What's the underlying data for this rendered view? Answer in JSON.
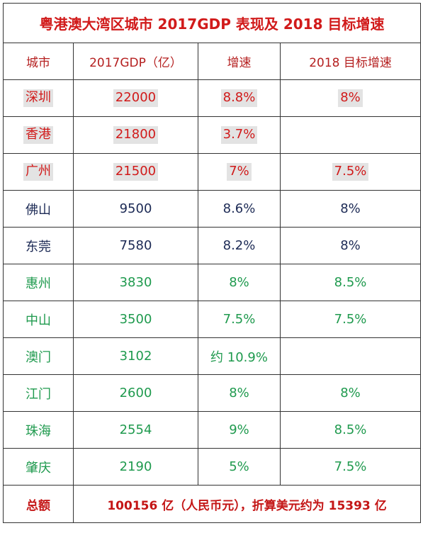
{
  "title": "粤港澳大湾区城市 2017GDP 表现及 2018 目标增速",
  "headers": [
    "城市",
    "2017GDP（亿）",
    "增速",
    "2018 目标增速"
  ],
  "colors": {
    "red": "#d11a1a",
    "navy": "#1c2a55",
    "green": "#1f9a4e",
    "header": "#b52020",
    "highlight": "#e3e3e3"
  },
  "rows": [
    {
      "city": "深圳",
      "gdp": "22000",
      "growth": "8.8%",
      "target": "8%",
      "group": "red"
    },
    {
      "city": "香港",
      "gdp": "21800",
      "growth": "3.7%",
      "target": "",
      "group": "red"
    },
    {
      "city": "广州",
      "gdp": "21500",
      "growth": "7%",
      "target": "7.5%",
      "group": "red"
    },
    {
      "city": "佛山",
      "gdp": "9500",
      "growth": "8.6%",
      "target": "8%",
      "group": "navy"
    },
    {
      "city": "东莞",
      "gdp": "7580",
      "growth": "8.2%",
      "target": "8%",
      "group": "navy"
    },
    {
      "city": "惠州",
      "gdp": "3830",
      "growth": "8%",
      "target": "8.5%",
      "group": "green"
    },
    {
      "city": "中山",
      "gdp": "3500",
      "growth": "7.5%",
      "target": "7.5%",
      "group": "green"
    },
    {
      "city": "澳门",
      "gdp": "3102",
      "growth": "约 10.9%",
      "target": "",
      "group": "green"
    },
    {
      "city": "江门",
      "gdp": "2600",
      "growth": "8%",
      "target": "8%",
      "group": "green"
    },
    {
      "city": "珠海",
      "gdp": "2554",
      "growth": "9%",
      "target": "8.5%",
      "group": "green"
    },
    {
      "city": "肇庆",
      "gdp": "2190",
      "growth": "5%",
      "target": "7.5%",
      "group": "green"
    }
  ],
  "total": {
    "label": "总额",
    "value": "100156 亿（人民币元），折算美元约为 15393 亿"
  }
}
